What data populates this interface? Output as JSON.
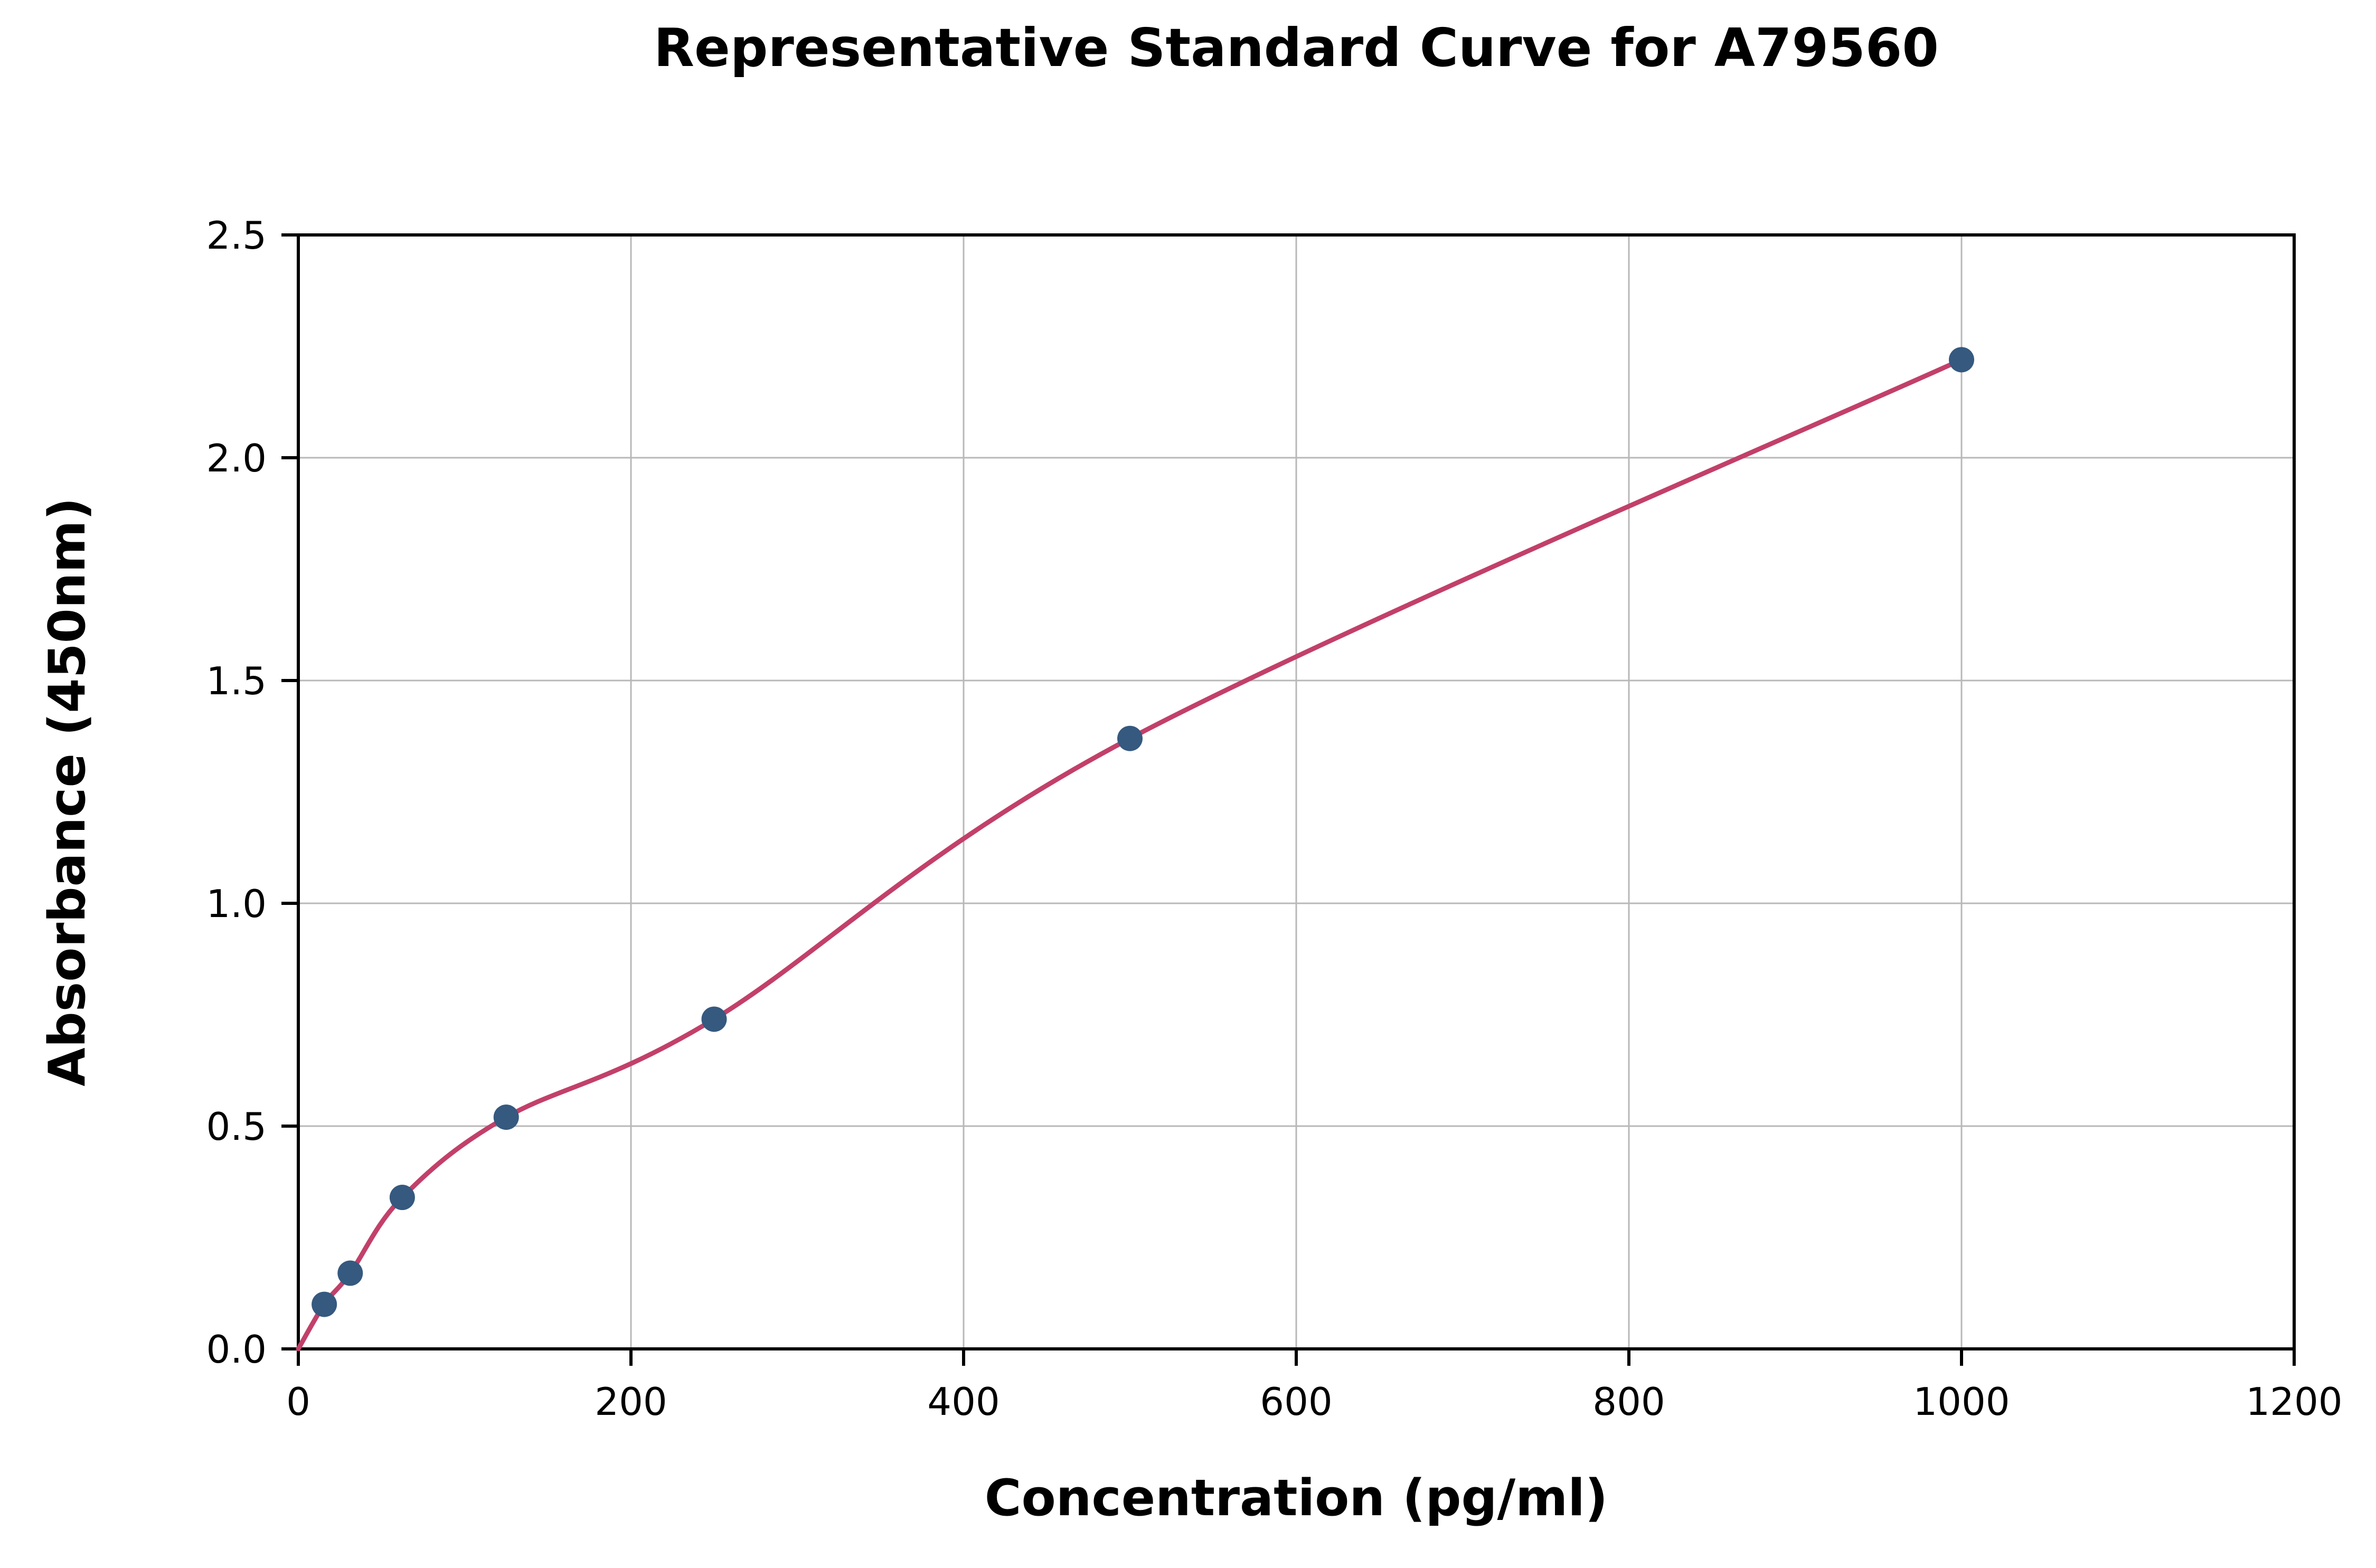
{
  "title": "Representative Standard Curve for A79560",
  "chart_data": {
    "type": "scatter",
    "title": "Representative Standard Curve for A79560",
    "xlabel": "Concentration (pg/ml)",
    "ylabel": "Absorbance (450nm)",
    "xlim": [
      0,
      1200
    ],
    "ylim": [
      0,
      2.5
    ],
    "x_ticks": [
      0,
      200,
      400,
      600,
      800,
      1000,
      1200
    ],
    "y_ticks": [
      0.0,
      0.5,
      1.0,
      1.5,
      2.0,
      2.5
    ],
    "grid": true,
    "legend": false,
    "series": [
      {
        "name": "standard-points",
        "type": "scatter",
        "x": [
          15.6,
          31.2,
          62.5,
          125,
          250,
          500,
          1000
        ],
        "y": [
          0.1,
          0.17,
          0.34,
          0.52,
          0.74,
          1.37,
          2.22
        ]
      },
      {
        "name": "fit-curve",
        "type": "line",
        "start": [
          0,
          0.0
        ]
      }
    ],
    "colors": {
      "points": "#35597f",
      "curve": "#c2406a",
      "grid": "#b8b8b8",
      "axis": "#000000",
      "background": "#ffffff"
    }
  }
}
